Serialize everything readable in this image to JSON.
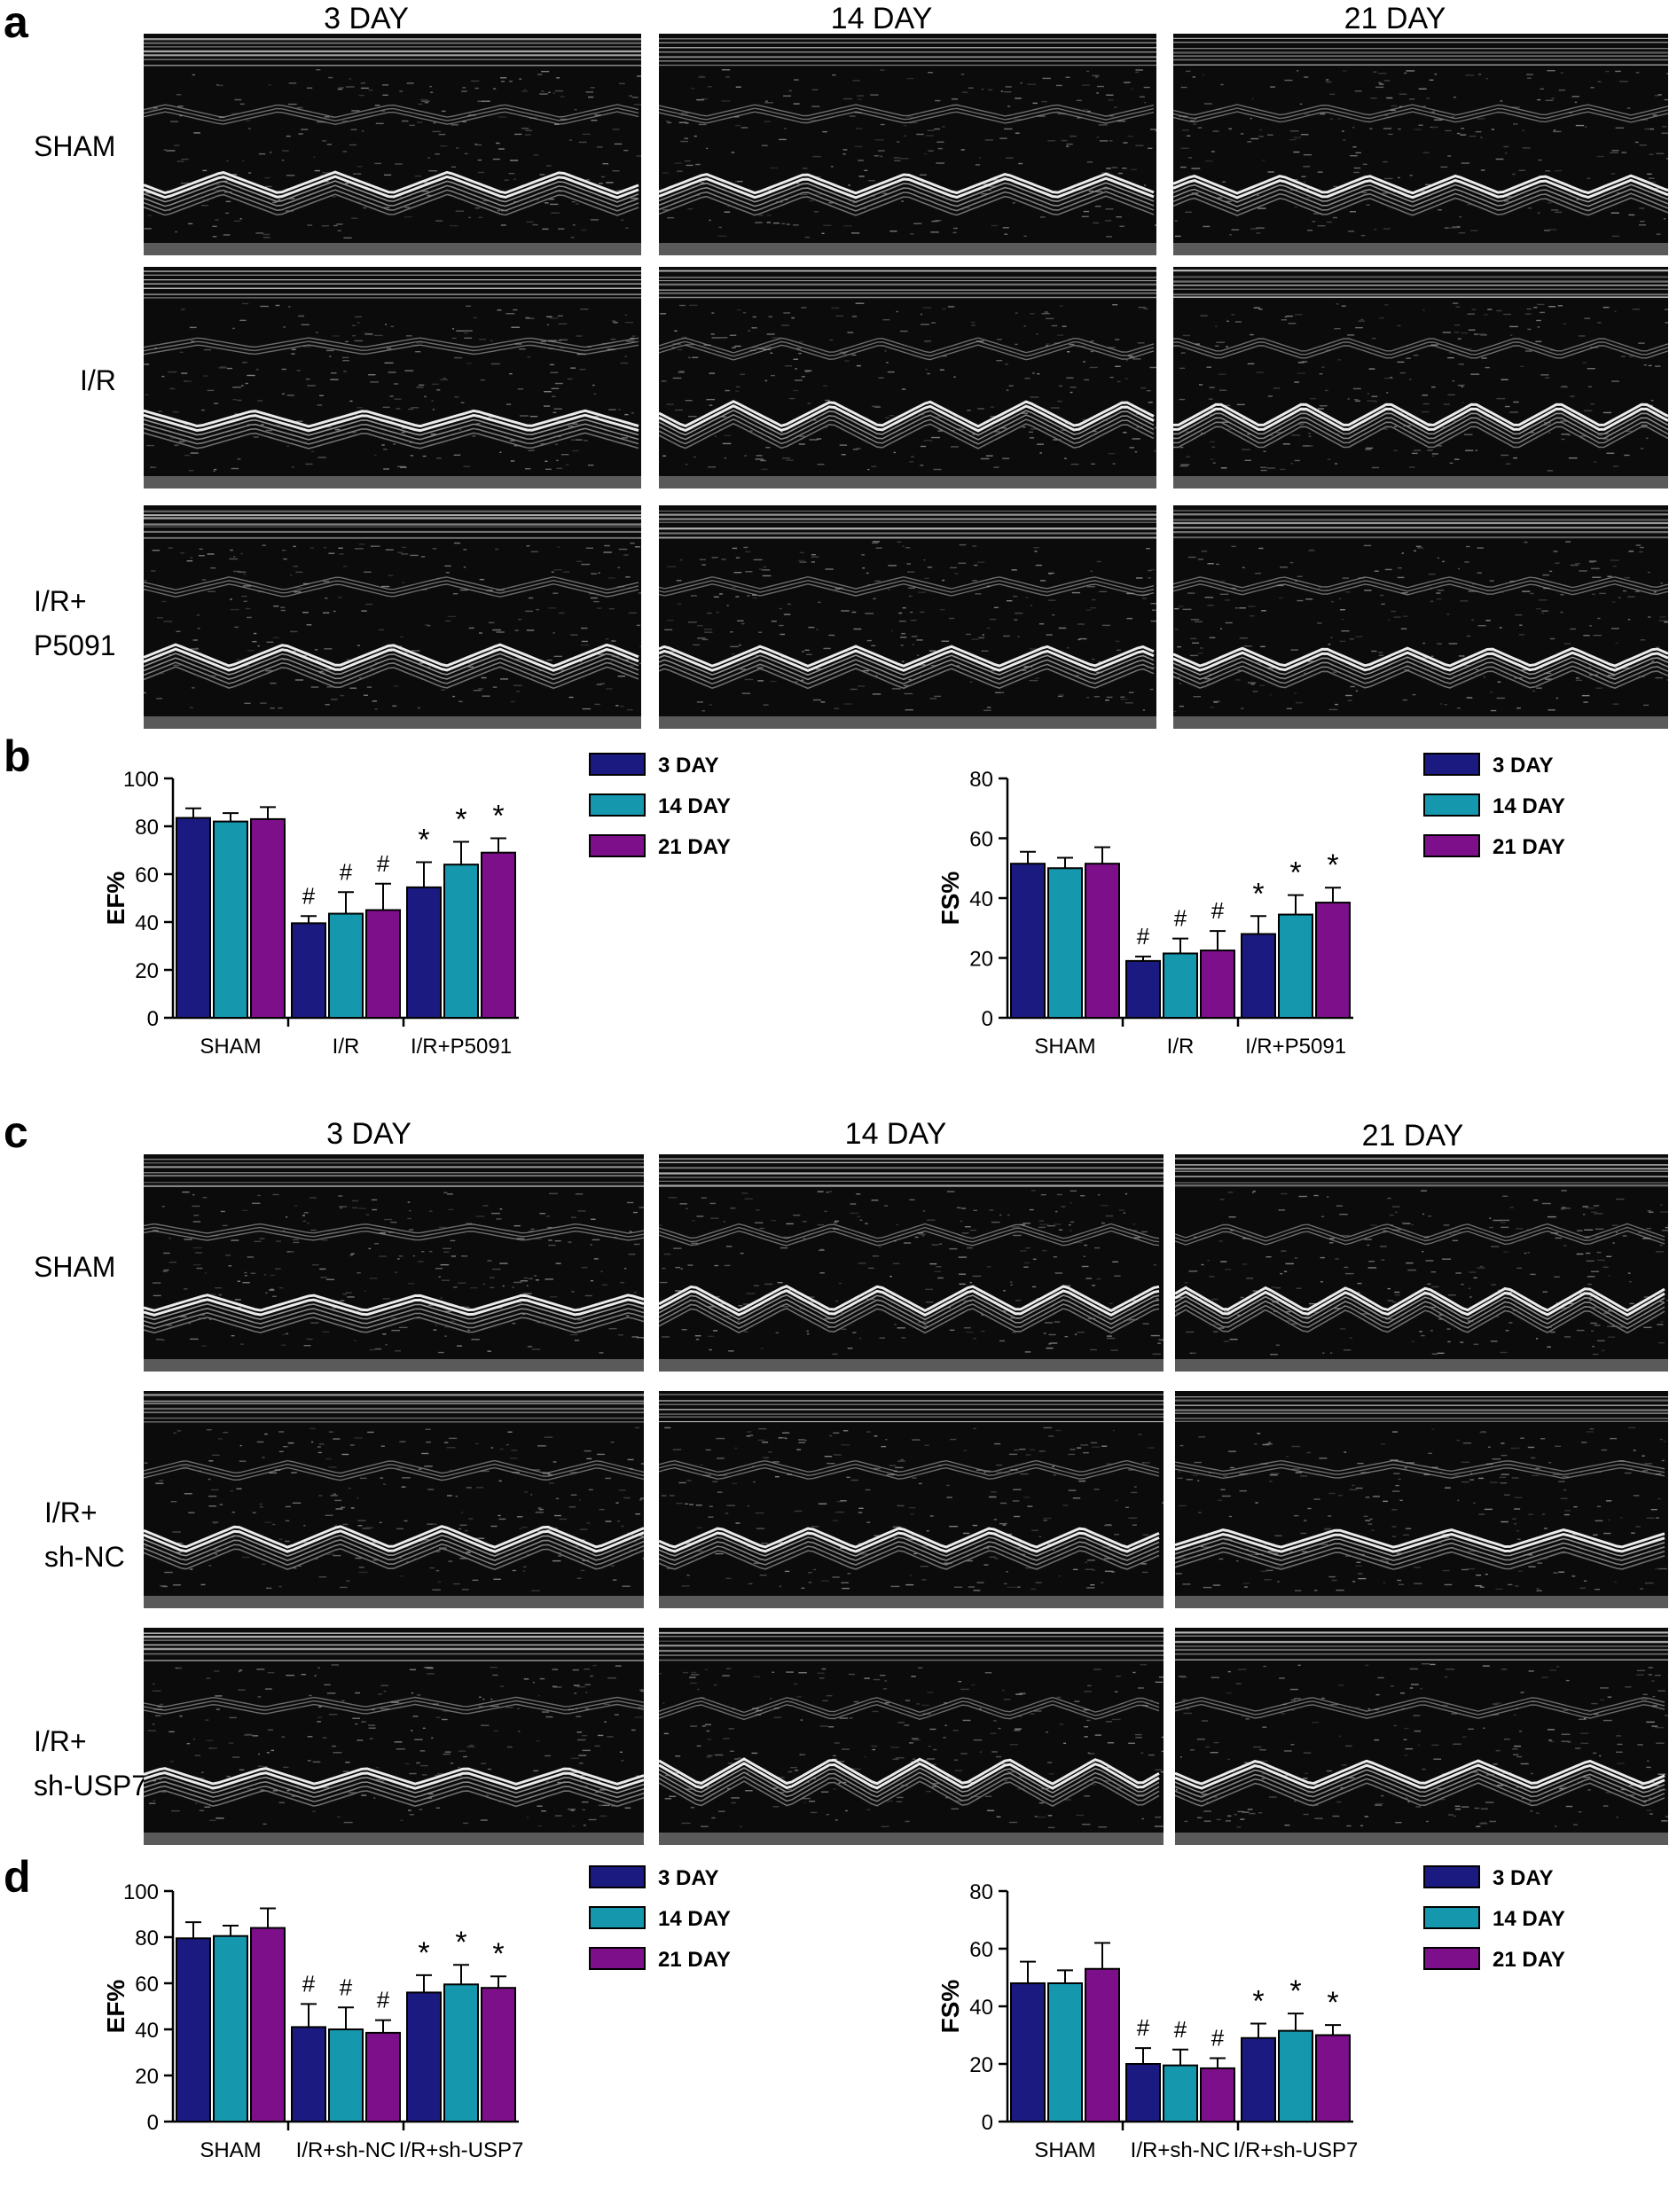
{
  "panel_letters": [
    "a",
    "b",
    "c",
    "d"
  ],
  "day_headers": [
    "3 DAY",
    "14 DAY",
    "21 DAY"
  ],
  "echo_a": {
    "rows": [
      {
        "line1": "SHAM",
        "line2": ""
      },
      {
        "line1": "I/R",
        "line2": ""
      },
      {
        "line1": "I/R+",
        "line2": "P5091"
      }
    ]
  },
  "echo_c": {
    "rows": [
      {
        "line1": "SHAM",
        "line2": ""
      },
      {
        "line1": "I/R+",
        "line2": "sh-NC"
      },
      {
        "line1": "I/R+",
        "line2": "sh-USP7"
      }
    ]
  },
  "chart_data": [
    {
      "type": "bar",
      "panel": "b",
      "ylabel": "EF%",
      "ylim": [
        0,
        100
      ],
      "yticks": [
        0,
        20,
        40,
        60,
        80,
        100
      ],
      "categories": [
        "SHAM",
        "I/R",
        "I/R+P5091"
      ],
      "series": [
        {
          "name": "3 DAY",
          "color": "#1a1a80",
          "values": [
            83.5,
            39.5,
            54.5
          ],
          "errors": [
            4,
            3,
            10.5
          ]
        },
        {
          "name": "14 DAY",
          "color": "#1597ae",
          "values": [
            82,
            43.5,
            64
          ],
          "errors": [
            3.5,
            9,
            9.5
          ]
        },
        {
          "name": "21 DAY",
          "color": "#7e0f8a",
          "values": [
            83,
            45,
            69
          ],
          "errors": [
            5,
            11,
            6
          ]
        }
      ],
      "annotations": [
        [
          "",
          "#",
          "*"
        ],
        [
          "",
          "#",
          "*"
        ],
        [
          "",
          "#",
          "*"
        ]
      ]
    },
    {
      "type": "bar",
      "panel": "b",
      "ylabel": "FS%",
      "ylim": [
        0,
        80
      ],
      "yticks": [
        0,
        20,
        40,
        60,
        80
      ],
      "categories": [
        "SHAM",
        "I/R",
        "I/R+P5091"
      ],
      "series": [
        {
          "name": "3 DAY",
          "color": "#1a1a80",
          "values": [
            51.5,
            19,
            28
          ],
          "errors": [
            4,
            1.5,
            6
          ]
        },
        {
          "name": "14 DAY",
          "color": "#1597ae",
          "values": [
            50,
            21.5,
            34.5
          ],
          "errors": [
            3.5,
            5,
            6.5
          ]
        },
        {
          "name": "21 DAY",
          "color": "#7e0f8a",
          "values": [
            51.5,
            22.5,
            38.5
          ],
          "errors": [
            5.5,
            6.5,
            5
          ]
        }
      ],
      "annotations": [
        [
          "",
          "#",
          "*"
        ],
        [
          "",
          "#",
          "*"
        ],
        [
          "",
          "#",
          "*"
        ]
      ]
    },
    {
      "type": "bar",
      "panel": "d",
      "ylabel": "EF%",
      "ylim": [
        0,
        100
      ],
      "yticks": [
        0,
        20,
        40,
        60,
        80,
        100
      ],
      "categories": [
        "SHAM",
        "I/R+sh-NC",
        "I/R+sh-USP7"
      ],
      "series": [
        {
          "name": "3 DAY",
          "color": "#1a1a80",
          "values": [
            79.5,
            41,
            56
          ],
          "errors": [
            7,
            10,
            7.5
          ]
        },
        {
          "name": "14 DAY",
          "color": "#1597ae",
          "values": [
            80.5,
            40,
            59.5
          ],
          "errors": [
            4.5,
            9.5,
            8.5
          ]
        },
        {
          "name": "21 DAY",
          "color": "#7e0f8a",
          "values": [
            84,
            38.5,
            58
          ],
          "errors": [
            8.5,
            5.5,
            5
          ]
        }
      ],
      "annotations": [
        [
          "",
          "#",
          "*"
        ],
        [
          "",
          "#",
          "*"
        ],
        [
          "",
          "#",
          "*"
        ]
      ]
    },
    {
      "type": "bar",
      "panel": "d",
      "ylabel": "FS%",
      "ylim": [
        0,
        80
      ],
      "yticks": [
        0,
        20,
        40,
        60,
        80
      ],
      "categories": [
        "SHAM",
        "I/R+sh-NC",
        "I/R+sh-USP7"
      ],
      "series": [
        {
          "name": "3 DAY",
          "color": "#1a1a80",
          "values": [
            48,
            20,
            29
          ],
          "errors": [
            7.5,
            5.5,
            5
          ]
        },
        {
          "name": "14 DAY",
          "color": "#1597ae",
          "values": [
            48,
            19.5,
            31.5
          ],
          "errors": [
            4.5,
            5.5,
            6
          ]
        },
        {
          "name": "21 DAY",
          "color": "#7e0f8a",
          "values": [
            53,
            18.5,
            30
          ],
          "errors": [
            9,
            3.5,
            3.5
          ]
        }
      ],
      "annotations": [
        [
          "",
          "#",
          "*"
        ],
        [
          "",
          "#",
          "*"
        ],
        [
          "",
          "#",
          "*"
        ]
      ]
    }
  ]
}
